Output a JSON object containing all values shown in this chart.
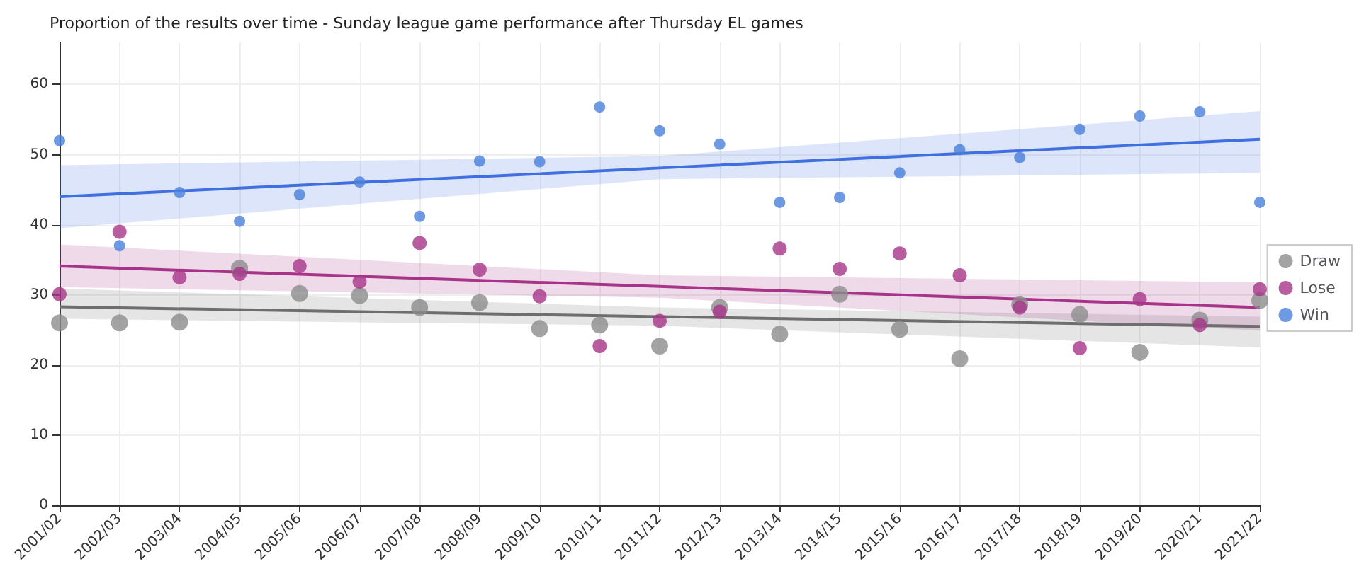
{
  "chart_data": {
    "type": "scatter",
    "title": "Proportion of the results over time - Sunday league game performance after Thursday EL games",
    "categories": [
      "2001/02",
      "2002/03",
      "2003/04",
      "2004/05",
      "2005/06",
      "2006/07",
      "2007/08",
      "2008/09",
      "2009/10",
      "2010/11",
      "2011/12",
      "2012/13",
      "2013/14",
      "2014/15",
      "2015/16",
      "2016/17",
      "2017/18",
      "2018/19",
      "2019/20",
      "2020/21",
      "2021/22"
    ],
    "series": [
      {
        "name": "Draw",
        "color": "#8c8c8c",
        "marker": "circle",
        "values": [
          26.0,
          26.0,
          26.1,
          33.8,
          30.2,
          29.9,
          28.2,
          28.9,
          25.2,
          25.7,
          22.7,
          28.2,
          24.4,
          30.1,
          25.1,
          20.9,
          28.6,
          27.2,
          21.8,
          26.4,
          29.2
        ]
      },
      {
        "name": "Lose",
        "color": "#a8348a",
        "marker": "circle",
        "values": [
          30.1,
          39.0,
          32.5,
          33.0,
          34.1,
          31.9,
          37.4,
          33.6,
          29.8,
          22.7,
          26.3,
          27.6,
          36.6,
          33.7,
          35.9,
          32.8,
          28.2,
          22.4,
          29.4,
          25.7,
          30.8
        ]
      },
      {
        "name": "Win",
        "color": "#4a7fdc",
        "marker": "circle",
        "values": [
          52.0,
          37.0,
          44.6,
          40.5,
          44.3,
          46.1,
          41.2,
          49.1,
          49.0,
          56.8,
          53.4,
          51.5,
          43.2,
          43.9,
          47.4,
          50.7,
          49.6,
          53.6,
          55.5,
          56.1,
          43.2
        ]
      },
      {
        "type": "line",
        "color": "#6e6e6e",
        "marker": "none",
        "x": [
          "2001/02",
          "2011/12",
          "2021/22"
        ],
        "values": [
          28.3,
          26.9,
          25.5
        ],
        "lower": [
          26.6,
          25.6,
          22.5
        ],
        "upper": [
          30.9,
          28.2,
          26.9
        ]
      },
      {
        "type": "line",
        "color": "#a8348a",
        "marker": "none",
        "x": [
          "2001/02",
          "2011/12",
          "2021/22"
        ],
        "values": [
          34.1,
          31.2,
          28.2
        ],
        "lower": [
          31.1,
          29.6,
          24.9
        ],
        "upper": [
          37.2,
          32.8,
          31.8
        ]
      },
      {
        "type": "line",
        "color": "#3f6fe0",
        "marker": "none",
        "x": [
          "2001/02",
          "2011/12",
          "2021/22"
        ],
        "values": [
          44.0,
          48.1,
          52.2
        ],
        "lower": [
          39.5,
          46.5,
          47.4
        ],
        "upper": [
          48.5,
          49.8,
          56.2
        ]
      }
    ],
    "ylim": [
      0,
      66
    ],
    "yticks": [
      0,
      10,
      20,
      30,
      40,
      50,
      60
    ],
    "grid": true,
    "legend": "right"
  }
}
